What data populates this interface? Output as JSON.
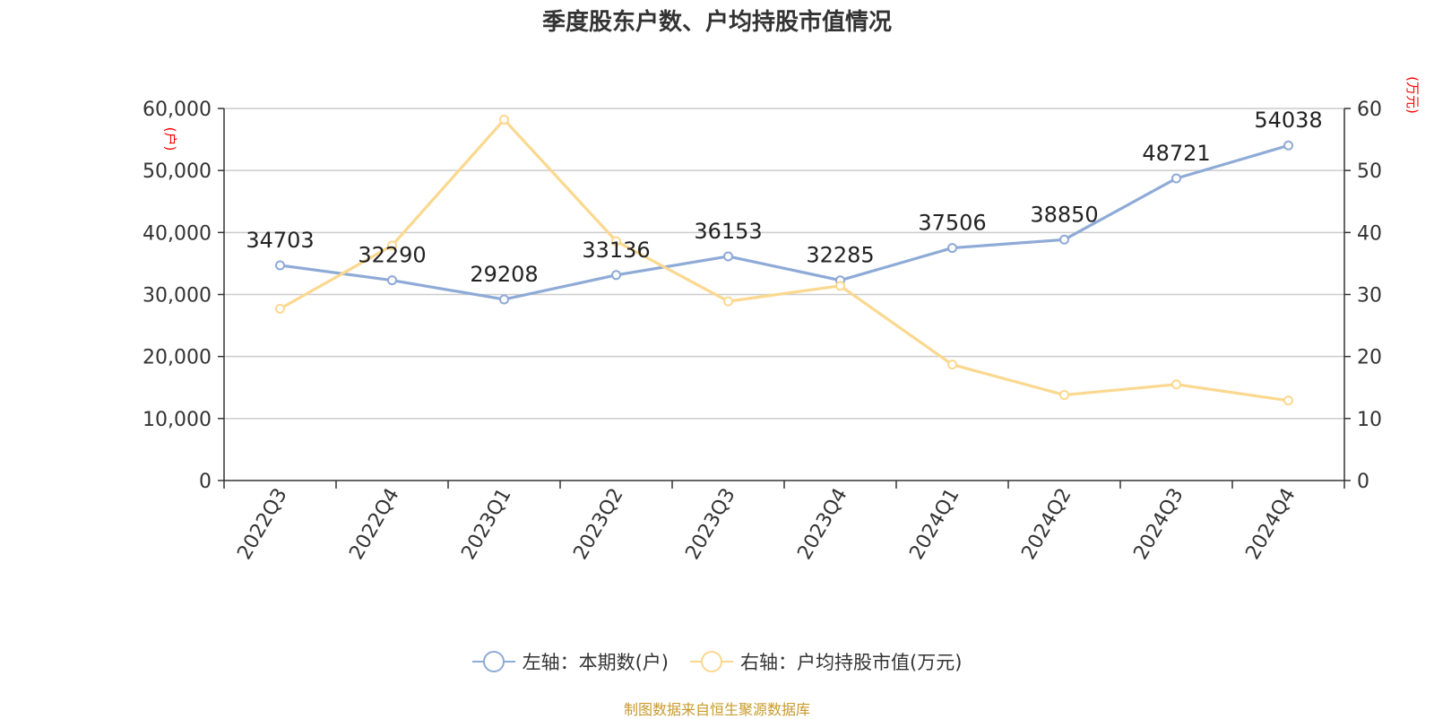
{
  "chart_data": {
    "type": "line",
    "title": "季度股东户数、户均持股市值情况",
    "categories": [
      "2022Q3",
      "2022Q4",
      "2023Q1",
      "2023Q2",
      "2023Q3",
      "2023Q4",
      "2024Q1",
      "2024Q2",
      "2024Q3",
      "2024Q4"
    ],
    "series": [
      {
        "name": "左轴：本期数(户)",
        "axis": "left",
        "color": "#8eaad6",
        "values": [
          34703,
          32290,
          29208,
          33136,
          36153,
          32285,
          37506,
          38850,
          48721,
          54038
        ],
        "labels": [
          "34703",
          "32290",
          "29208",
          "33136",
          "36153",
          "32285",
          "37506",
          "38850",
          "48721",
          "54038"
        ]
      },
      {
        "name": "右轴：户均持股市值(万元)",
        "axis": "right",
        "color": "#fbd88f",
        "values": [
          27.7,
          37.9,
          58.2,
          38.6,
          28.9,
          31.4,
          18.7,
          13.8,
          15.5,
          12.9
        ]
      }
    ],
    "left_axis": {
      "unit": "(户)",
      "min": 0,
      "max": 60000,
      "ticks": [
        "0",
        "10,000",
        "20,000",
        "30,000",
        "40,000",
        "50,000",
        "60,000"
      ]
    },
    "right_axis": {
      "unit": "(万元)",
      "min": 0,
      "max": 60,
      "ticks": [
        "0",
        "10",
        "20",
        "30",
        "40",
        "50",
        "60"
      ]
    },
    "grid": true,
    "legend_position": "bottom-center"
  },
  "source": "制图数据来自恒生聚源数据库",
  "colors": {
    "unit_label": "#ff0000",
    "axis": "#333333",
    "grid": "#cccccc"
  }
}
